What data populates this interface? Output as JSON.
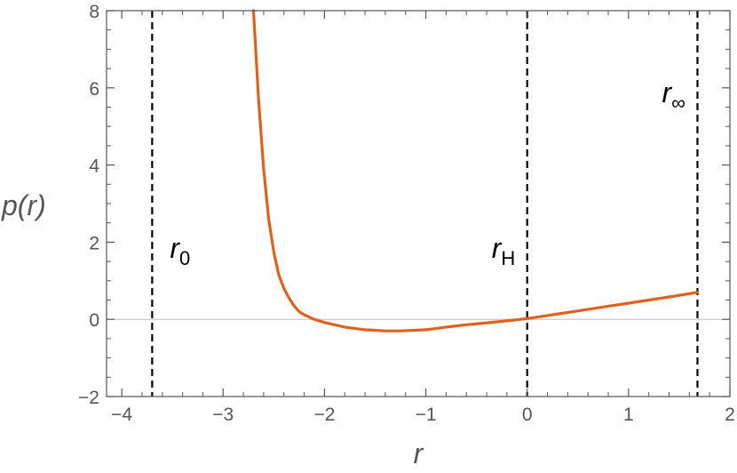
{
  "chart_data": {
    "type": "line",
    "title": "",
    "xlabel": "r",
    "ylabel": "p(r)",
    "xlim": [
      -4.15,
      2.0
    ],
    "ylim": [
      -2,
      8
    ],
    "x_ticks": [
      -4,
      -3,
      -2,
      -1,
      0,
      1,
      2
    ],
    "x_tick_labels": [
      "−4",
      "−3",
      "−2",
      "−1",
      "0",
      "1",
      "2"
    ],
    "y_ticks": [
      -2,
      0,
      2,
      4,
      6,
      8
    ],
    "y_tick_labels": [
      "−2",
      "0",
      "2",
      "4",
      "6",
      "8"
    ],
    "grid": false,
    "colors": {
      "curve": "#E0601E",
      "frame": "#555555",
      "zero_line": "#bdbdbd",
      "markers": "#000000"
    },
    "series": [
      {
        "x": [
          -2.7,
          -2.65,
          -2.6,
          -2.55,
          -2.5,
          -2.45,
          -2.4,
          -2.35,
          -2.3,
          -2.25,
          -2.2,
          -2.1,
          -2.0,
          -1.8,
          -1.6,
          -1.4,
          -1.25,
          -1.0,
          -0.8,
          -0.6,
          -0.4,
          -0.2,
          0.0,
          0.2,
          0.4,
          0.6,
          0.8,
          1.0,
          1.2,
          1.4,
          1.68
        ],
        "y": [
          8.0,
          5.7,
          3.9,
          2.6,
          1.75,
          1.15,
          0.8,
          0.55,
          0.35,
          0.2,
          0.12,
          0.0,
          -0.08,
          -0.2,
          -0.27,
          -0.3,
          -0.3,
          -0.27,
          -0.2,
          -0.14,
          -0.09,
          -0.04,
          0.02,
          0.1,
          0.18,
          0.26,
          0.34,
          0.42,
          0.5,
          0.58,
          0.7
        ]
      }
    ],
    "vertical_markers": [
      {
        "x": -3.7,
        "label": "r",
        "sub": "0"
      },
      {
        "x": 0.0,
        "label": "r",
        "sub": "H"
      },
      {
        "x": 1.68,
        "label": "r",
        "sub": "∞"
      }
    ]
  }
}
